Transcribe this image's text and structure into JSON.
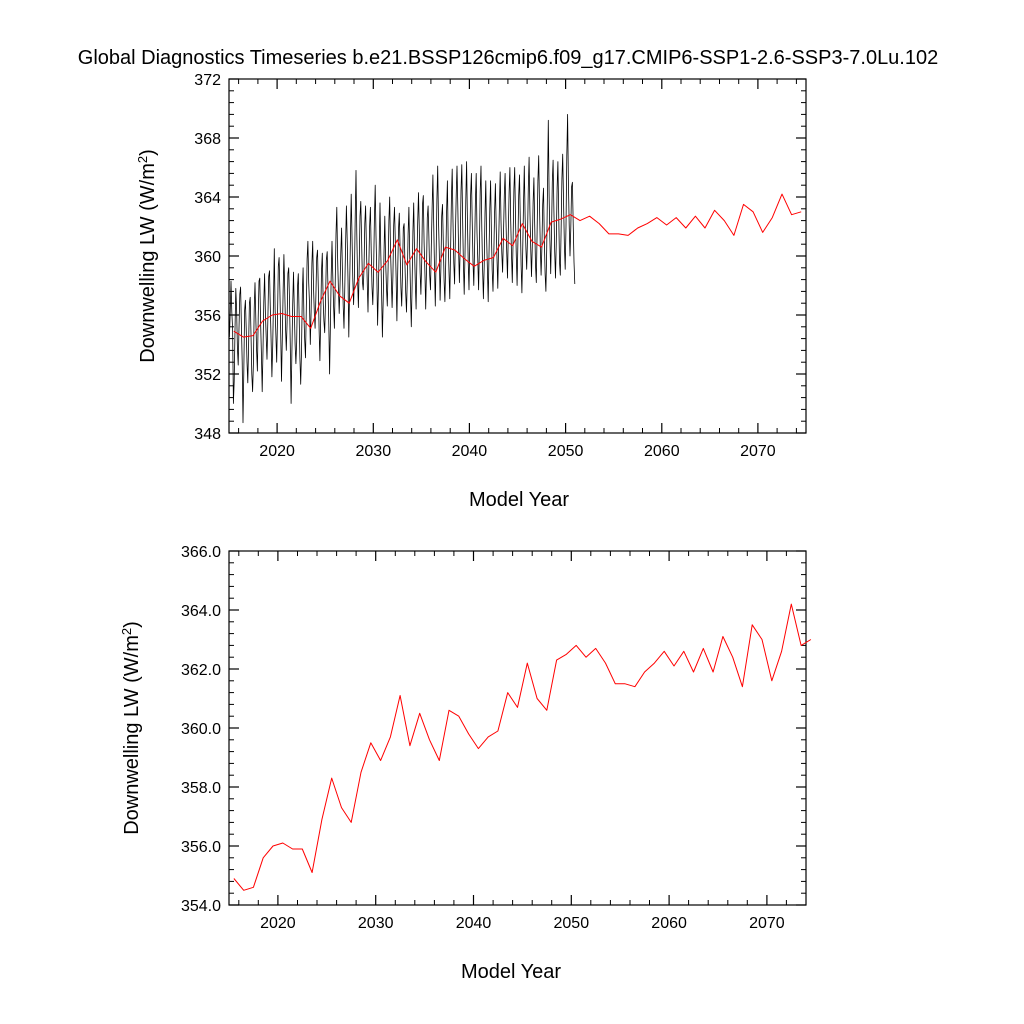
{
  "chart_data": [
    {
      "type": "line",
      "title": "Global Diagnostics Timeseries b.e21.BSSP126cmip6.f09_g17.CMIP6-SSP1-2.6-SSP3-7.0Lu.102",
      "xlabel": "Model Year",
      "ylabel": "Downwelling LW (W/m²)",
      "xlim": [
        2015,
        2075
      ],
      "ylim": [
        348,
        372
      ],
      "x_ticks": [
        2020,
        2030,
        2040,
        2050,
        2060,
        2070
      ],
      "y_ticks": [
        348,
        352,
        356,
        360,
        364,
        368,
        372
      ],
      "y_tick_labels": [
        "348",
        "352",
        "356",
        "360",
        "364",
        "368",
        "372"
      ],
      "grid": false,
      "legend": "none",
      "series": [
        {
          "kind": "monthly",
          "color": "#000000",
          "x_start": 2015.04,
          "x_step": 0.08333,
          "values": [
            354.5,
            356.1,
            358.3,
            356.2,
            355.1,
            350.0,
            351.5,
            355.0,
            357.8,
            356.4,
            353.8,
            352.6,
            355.1,
            357.4,
            357.9,
            355.3,
            352.8,
            348.7,
            352.1,
            356.3,
            357.0,
            355.1,
            352.8,
            351.4,
            354.0,
            356.8,
            357.2,
            354.7,
            352.0,
            350.8,
            352.7,
            356.4,
            358.2,
            355.8,
            353.6,
            352.2,
            355.8,
            358.3,
            358.5,
            355.5,
            353.4,
            350.8,
            353.6,
            356.9,
            358.8,
            356.1,
            354.5,
            353.0,
            355.5,
            358.6,
            359.0,
            356.5,
            354.3,
            351.8,
            353.9,
            357.0,
            360.5,
            356.4,
            354.6,
            352.8,
            355.8,
            359.3,
            359.9,
            357.6,
            354.8,
            351.5,
            354.4,
            357.5,
            360.1,
            357.8,
            355.2,
            353.6,
            355.5,
            358.8,
            359.2,
            357.0,
            353.8,
            350.0,
            353.5,
            356.7,
            358.9,
            356.4,
            354.0,
            352.7,
            354.2,
            357.9,
            358.8,
            356.1,
            353.1,
            351.3,
            353.5,
            357.4,
            359.2,
            356.0,
            354.3,
            353.1,
            356.4,
            359.8,
            361.0,
            358.2,
            356.8,
            354.0,
            356.2,
            359.5,
            361.0,
            357.9,
            356.2,
            355.1,
            357.3,
            359.9,
            360.4,
            357.9,
            355.0,
            352.9,
            355.7,
            359.0,
            360.2,
            357.1,
            355.6,
            354.8,
            356.9,
            359.7,
            360.3,
            357.8,
            355.4,
            352.0,
            355.3,
            358.7,
            361.0,
            358.6,
            356.6,
            355.1,
            358.1,
            361.5,
            363.3,
            359.9,
            357.8,
            356.1,
            357.9,
            360.2,
            361.9,
            359.0,
            356.6,
            355.1,
            357.9,
            360.8,
            363.4,
            361.1,
            358.4,
            354.5,
            357.8,
            361.1,
            364.2,
            361.4,
            358.4,
            356.7,
            358.6,
            362.6,
            365.8,
            361.5,
            358.4,
            356.5,
            359.3,
            362.7,
            363.7,
            361.1,
            358.3,
            357.7,
            359.1,
            362.2,
            363.4,
            360.7,
            358.3,
            356.2,
            359.2,
            362.0,
            363.3,
            360.4,
            357.9,
            356.7,
            358.9,
            362.5,
            364.8,
            361.4,
            358.8,
            355.3,
            357.8,
            360.5,
            363.6,
            360.2,
            357.5,
            354.5,
            357.0,
            360.2,
            362.7,
            359.7,
            357.8,
            356.6,
            359.2,
            362.4,
            364.0,
            360.4,
            358.5,
            356.5,
            358.6,
            362.1,
            363.3,
            361.0,
            358.6,
            355.6,
            358.9,
            361.8,
            362.9,
            360.5,
            357.9,
            356.6,
            358.9,
            361.9,
            362.2,
            359.6,
            357.5,
            356.2,
            358.5,
            361.5,
            363.3,
            360.2,
            357.5,
            355.2,
            358.0,
            361.6,
            363.6,
            360.4,
            358.2,
            356.4,
            359.8,
            362.3,
            364.3,
            361.8,
            358.9,
            357.4,
            359.6,
            363.5,
            364.1,
            360.9,
            358.9,
            356.4,
            359.1,
            362.6,
            363.4,
            361.3,
            358.7,
            357.7,
            360.6,
            363.2,
            365.5,
            362.2,
            359.2,
            356.6,
            359.8,
            363.8,
            366.1,
            362.4,
            360.2,
            357.0,
            359.2,
            362.7,
            363.5,
            360.9,
            358.3,
            356.9,
            359.8,
            363.0,
            365.1,
            361.0,
            358.9,
            357.1,
            360.4,
            363.9,
            365.9,
            362.3,
            359.5,
            358.1,
            361.4,
            364.1,
            366.1,
            363.4,
            360.4,
            358.2,
            360.6,
            364.4,
            366.2,
            362.6,
            359.5,
            357.4,
            360.1,
            363.8,
            366.4,
            362.5,
            359.6,
            357.7,
            361.0,
            364.1,
            365.6,
            362.4,
            359.6,
            358.0,
            360.6,
            363.7,
            365.6,
            361.6,
            359.7,
            357.7,
            360.6,
            364.4,
            366.1,
            361.9,
            359.1,
            357.1,
            359.3,
            362.9,
            365.1,
            361.3,
            359.1,
            356.9,
            360.1,
            363.2,
            365.1,
            361.6,
            359.0,
            357.6,
            360.1,
            363.0,
            364.9,
            362.0,
            359.8,
            357.8,
            360.7,
            363.3,
            365.7,
            362.4,
            360.2,
            358.9,
            361.2,
            364.1,
            365.6,
            362.6,
            360.3,
            358.5,
            361.6,
            364.3,
            366.0,
            362.4,
            360.1,
            358.2,
            361.1,
            364.5,
            366.0,
            362.6,
            360.0,
            358.0,
            360.9,
            364.1,
            365.5,
            362.4,
            359.4,
            357.5,
            360.3,
            363.5,
            366.1,
            362.7,
            360.5,
            359.1,
            361.2,
            364.6,
            366.7,
            363.1,
            360.6,
            358.6,
            360.7,
            363.6,
            365.3,
            362.1,
            359.4,
            358.2,
            361.6,
            365.1,
            366.8,
            363.4,
            360.6,
            358.7,
            360.6,
            363.5,
            364.6,
            361.2,
            358.8,
            357.6,
            360.4,
            364.6,
            369.2,
            364.2,
            361.1,
            358.8,
            361.5,
            365.0,
            366.5,
            363.1,
            360.3,
            358.5,
            361.0,
            364.6,
            366.4,
            362.9,
            359.6,
            358.7,
            361.7,
            365.2,
            366.9,
            363.5,
            360.7,
            359.1,
            362.0,
            366.8,
            369.6,
            365.0,
            362.1,
            360.0,
            361.9,
            364.7,
            365.0,
            362.2,
            359.6,
            358.1
          ]
        },
        {
          "kind": "annual",
          "color": "#ff0000",
          "x": [
            2015.5,
            2016.5,
            2017.5,
            2018.5,
            2019.5,
            2020.5,
            2021.5,
            2022.5,
            2023.5,
            2024.5,
            2025.5,
            2026.5,
            2027.5,
            2028.5,
            2029.5,
            2030.5,
            2031.5,
            2032.5,
            2033.5,
            2034.5,
            2035.5,
            2036.5,
            2037.5,
            2038.5,
            2039.5,
            2040.5,
            2041.5,
            2042.5,
            2043.5,
            2044.5,
            2045.5,
            2046.5,
            2047.5,
            2048.5,
            2049.5,
            2050.5,
            2051.5,
            2052.5,
            2053.5,
            2054.5,
            2055.5,
            2056.5,
            2057.5,
            2058.5,
            2059.5,
            2060.5,
            2061.5,
            2062.5,
            2063.5,
            2064.5,
            2065.5,
            2066.5,
            2067.5,
            2068.5,
            2069.5,
            2070.5,
            2071.5,
            2072.5,
            2073.5,
            2074.5
          ],
          "values": [
            354.9,
            354.5,
            354.6,
            355.6,
            356.0,
            356.1,
            355.9,
            355.9,
            355.1,
            356.9,
            358.3,
            357.3,
            356.8,
            358.5,
            359.5,
            358.9,
            359.7,
            361.1,
            359.4,
            360.5,
            359.6,
            358.9,
            360.6,
            360.4,
            359.8,
            359.3,
            359.7,
            359.9,
            361.2,
            360.7,
            362.2,
            361.0,
            360.6,
            362.3,
            362.5,
            362.8,
            362.4,
            362.7,
            362.2,
            361.5,
            361.5,
            361.4,
            361.9,
            362.2,
            362.6,
            362.1,
            362.6,
            361.9,
            362.7,
            361.9,
            363.1,
            362.4,
            361.4,
            363.5,
            363.0,
            361.6,
            362.6,
            364.2,
            362.8,
            363.0
          ]
        }
      ]
    },
    {
      "type": "line",
      "xlabel": "Model Year",
      "ylabel": "Downwelling LW (W/m²)",
      "xlim": [
        2015,
        2074
      ],
      "ylim": [
        354,
        366
      ],
      "x_ticks": [
        2020,
        2030,
        2040,
        2050,
        2060,
        2070
      ],
      "y_ticks": [
        354,
        356,
        358,
        360,
        362,
        364,
        366
      ],
      "y_tick_labels": [
        "354.0",
        "356.0",
        "358.0",
        "360.0",
        "362.0",
        "364.0",
        "366.0"
      ],
      "grid": false,
      "legend": "none",
      "series": [
        {
          "kind": "annual",
          "color": "#ff0000",
          "x": [
            2015.5,
            2016.5,
            2017.5,
            2018.5,
            2019.5,
            2020.5,
            2021.5,
            2022.5,
            2023.5,
            2024.5,
            2025.5,
            2026.5,
            2027.5,
            2028.5,
            2029.5,
            2030.5,
            2031.5,
            2032.5,
            2033.5,
            2034.5,
            2035.5,
            2036.5,
            2037.5,
            2038.5,
            2039.5,
            2040.5,
            2041.5,
            2042.5,
            2043.5,
            2044.5,
            2045.5,
            2046.5,
            2047.5,
            2048.5,
            2049.5,
            2050.5,
            2051.5,
            2052.5,
            2053.5,
            2054.5,
            2055.5,
            2056.5,
            2057.5,
            2058.5,
            2059.5,
            2060.5,
            2061.5,
            2062.5,
            2063.5,
            2064.5,
            2065.5,
            2066.5,
            2067.5,
            2068.5,
            2069.5,
            2070.5,
            2071.5,
            2072.5,
            2073.5,
            2074.5
          ],
          "values": [
            354.9,
            354.5,
            354.6,
            355.6,
            356.0,
            356.1,
            355.9,
            355.9,
            355.1,
            356.9,
            358.3,
            357.3,
            356.8,
            358.5,
            359.5,
            358.9,
            359.7,
            361.1,
            359.4,
            360.5,
            359.6,
            358.9,
            360.6,
            360.4,
            359.8,
            359.3,
            359.7,
            359.9,
            361.2,
            360.7,
            362.2,
            361.0,
            360.6,
            362.3,
            362.5,
            362.8,
            362.4,
            362.7,
            362.2,
            361.5,
            361.5,
            361.4,
            361.9,
            362.2,
            362.6,
            362.1,
            362.6,
            361.9,
            362.7,
            361.9,
            363.1,
            362.4,
            361.4,
            363.5,
            363.0,
            361.6,
            362.6,
            364.2,
            362.8,
            363.0
          ]
        }
      ]
    }
  ]
}
